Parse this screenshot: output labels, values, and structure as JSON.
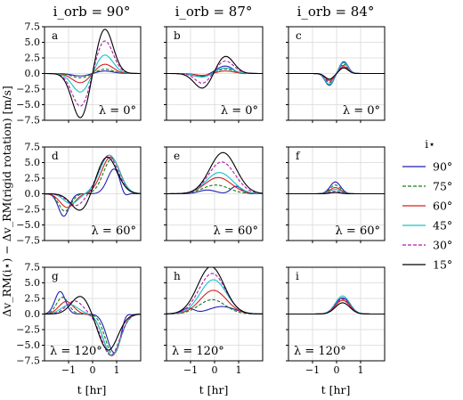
{
  "figure": {
    "column_titles": [
      "i_orb = 90°",
      "i_orb = 87°",
      "i_orb = 84°"
    ],
    "ylabel": "Δv_RM(i⋆) − Δv_RM(rigid rotation) [m/s]",
    "xlabel": "t [hr]"
  },
  "legend": {
    "title": "i⋆",
    "entries": [
      {
        "label": "90°",
        "color": "#1f1fb4",
        "dash": "solid"
      },
      {
        "label": "75°",
        "color": "#1a7a1a",
        "dash": "dashed"
      },
      {
        "label": "60°",
        "color": "#d62020",
        "dash": "solid"
      },
      {
        "label": "45°",
        "color": "#17c4c4",
        "dash": "solid"
      },
      {
        "label": "30°",
        "color": "#b01ab0",
        "dash": "dashed"
      },
      {
        "label": "15°",
        "color": "#000000",
        "dash": "solid"
      }
    ]
  },
  "chart_data": {
    "type": "line",
    "layout": "3x3 grid of panels",
    "xlim": [
      -2,
      2
    ],
    "ylim": [
      -7.5,
      7.5
    ],
    "xticks": [
      -1,
      0,
      1
    ],
    "yticks": [
      -7.5,
      -5.0,
      -2.5,
      0.0,
      2.5,
      5.0,
      7.5
    ],
    "grid": true,
    "legend_position": "right",
    "panels": [
      {
        "id": "a",
        "letter": "a",
        "lambda": "λ = 0°",
        "i_orb": "90°",
        "row": 0,
        "col": 0,
        "curves": [
          {
            "series": "90°",
            "lobes": [
              [
                -0.5,
                0.35,
                -0.4
              ],
              [
                0.5,
                0.35,
                0.4
              ]
            ]
          },
          {
            "series": "75°",
            "lobes": [
              [
                -0.5,
                0.35,
                -0.7
              ],
              [
                0.5,
                0.35,
                0.7
              ]
            ]
          },
          {
            "series": "60°",
            "lobes": [
              [
                -0.5,
                0.35,
                -1.5
              ],
              [
                0.5,
                0.35,
                1.5
              ]
            ]
          },
          {
            "series": "45°",
            "lobes": [
              [
                -0.5,
                0.35,
                -3.0
              ],
              [
                0.5,
                0.35,
                3.0
              ]
            ]
          },
          {
            "series": "30°",
            "lobes": [
              [
                -0.5,
                0.35,
                -5.3
              ],
              [
                0.5,
                0.35,
                5.3
              ]
            ]
          },
          {
            "series": "15°",
            "lobes": [
              [
                -0.5,
                0.35,
                -7.2
              ],
              [
                0.5,
                0.35,
                7.2
              ]
            ]
          }
        ]
      },
      {
        "id": "b",
        "letter": "b",
        "lambda": "λ = 0°",
        "i_orb": "87°",
        "row": 0,
        "col": 1,
        "curves": [
          {
            "series": "90°",
            "lobes": [
              [
                -0.6,
                0.3,
                -0.5
              ],
              [
                0.45,
                0.35,
                1.2
              ],
              [
                1.0,
                0.2,
                -0.2
              ]
            ]
          },
          {
            "series": "75°",
            "lobes": [
              [
                -0.55,
                0.3,
                -0.4
              ],
              [
                0.45,
                0.35,
                0.7
              ]
            ]
          },
          {
            "series": "60°",
            "lobes": [
              [
                -0.5,
                0.3,
                -0.3
              ],
              [
                0.45,
                0.35,
                0.4
              ]
            ]
          },
          {
            "series": "45°",
            "lobes": [
              [
                -0.5,
                0.3,
                -0.6
              ],
              [
                0.45,
                0.35,
                0.9
              ]
            ]
          },
          {
            "series": "30°",
            "lobes": [
              [
                -0.5,
                0.3,
                -1.6
              ],
              [
                0.45,
                0.35,
                2.0
              ]
            ]
          },
          {
            "series": "15°",
            "lobes": [
              [
                -0.5,
                0.35,
                -2.4
              ],
              [
                0.45,
                0.35,
                2.8
              ]
            ]
          }
        ]
      },
      {
        "id": "c",
        "letter": "c",
        "lambda": "λ = 0°",
        "i_orb": "84°",
        "row": 0,
        "col": 2,
        "curves": [
          {
            "series": "90°",
            "lobes": [
              [
                -0.3,
                0.18,
                -1.9
              ],
              [
                0.3,
                0.18,
                1.9
              ]
            ]
          },
          {
            "series": "75°",
            "lobes": [
              [
                -0.3,
                0.18,
                -1.5
              ],
              [
                0.3,
                0.18,
                1.5
              ]
            ]
          },
          {
            "series": "60°",
            "lobes": [
              [
                -0.3,
                0.18,
                -1.1
              ],
              [
                0.3,
                0.18,
                1.1
              ]
            ]
          },
          {
            "series": "45°",
            "lobes": [
              [
                -0.3,
                0.18,
                -1.75
              ],
              [
                0.3,
                0.18,
                1.75
              ]
            ]
          },
          {
            "series": "30°",
            "lobes": [
              [
                -0.3,
                0.18,
                -1.3
              ],
              [
                0.3,
                0.18,
                1.3
              ]
            ]
          },
          {
            "series": "15°",
            "lobes": [
              [
                -0.3,
                0.18,
                -0.9
              ],
              [
                0.3,
                0.18,
                0.9
              ]
            ]
          }
        ]
      },
      {
        "id": "d",
        "letter": "d",
        "lambda": "λ = 60°",
        "i_orb": "90°",
        "row": 1,
        "col": 0,
        "curves": [
          {
            "series": "90°",
            "lobes": [
              [
                -1.2,
                0.22,
                -3.6
              ],
              [
                0.9,
                0.28,
                4.0
              ],
              [
                1.3,
                0.15,
                -1.2
              ]
            ]
          },
          {
            "series": "75°",
            "lobes": [
              [
                -1.15,
                0.25,
                -2.8
              ],
              [
                0.8,
                0.35,
                5.6
              ]
            ]
          },
          {
            "series": "60°",
            "lobes": [
              [
                -1.05,
                0.3,
                -2.2
              ],
              [
                0.75,
                0.38,
                5.9
              ]
            ]
          },
          {
            "series": "45°",
            "lobes": [
              [
                -0.9,
                0.3,
                -1.6
              ],
              [
                0.7,
                0.4,
                6.2
              ]
            ]
          },
          {
            "series": "30°",
            "lobes": [
              [
                -0.7,
                0.35,
                -1.9
              ],
              [
                0.65,
                0.4,
                6.1
              ]
            ]
          },
          {
            "series": "15°",
            "lobes": [
              [
                -0.5,
                0.38,
                -2.8
              ],
              [
                0.6,
                0.42,
                5.9
              ]
            ]
          }
        ]
      },
      {
        "id": "e",
        "letter": "e",
        "lambda": "λ = 60°",
        "i_orb": "87°",
        "row": 1,
        "col": 1,
        "curves": [
          {
            "series": "90°",
            "lobes": [
              [
                -0.3,
                0.35,
                0.6
              ],
              [
                0.9,
                0.22,
                1.2
              ]
            ]
          },
          {
            "series": "75°",
            "lobes": [
              [
                0.05,
                0.55,
                1.4
              ]
            ]
          },
          {
            "series": "60°",
            "lobes": [
              [
                0.15,
                0.55,
                2.6
              ]
            ]
          },
          {
            "series": "45°",
            "lobes": [
              [
                0.2,
                0.55,
                3.4
              ]
            ]
          },
          {
            "series": "30°",
            "lobes": [
              [
                0.3,
                0.55,
                5.1
              ]
            ]
          },
          {
            "series": "15°",
            "lobes": [
              [
                0.35,
                0.55,
                6.6
              ]
            ]
          }
        ]
      },
      {
        "id": "f",
        "letter": "f",
        "lambda": "λ = 60°",
        "i_orb": "84°",
        "row": 1,
        "col": 2,
        "curves": [
          {
            "series": "90°",
            "lobes": [
              [
                -0.05,
                0.22,
                1.9
              ]
            ]
          },
          {
            "series": "75°",
            "lobes": [
              [
                -0.05,
                0.22,
                1.4
              ]
            ]
          },
          {
            "series": "60°",
            "lobes": [
              [
                -0.05,
                0.22,
                1.0
              ]
            ]
          },
          {
            "series": "45°",
            "lobes": [
              [
                -0.05,
                0.22,
                0.7
              ]
            ]
          },
          {
            "series": "30°",
            "lobes": [
              [
                -0.05,
                0.22,
                0.4
              ]
            ]
          },
          {
            "series": "15°",
            "lobes": [
              [
                -0.05,
                0.22,
                0.2
              ]
            ]
          }
        ]
      },
      {
        "id": "g",
        "letter": "g",
        "lambda": "λ = 120°",
        "i_orb": "90°",
        "row": 2,
        "col": 0,
        "curves": [
          {
            "series": "90°",
            "lobes": [
              [
                -1.35,
                0.22,
                3.6
              ],
              [
                0.9,
                0.3,
                -6.2
              ],
              [
                1.35,
                0.15,
                1.2
              ]
            ]
          },
          {
            "series": "75°",
            "lobes": [
              [
                -1.25,
                0.25,
                2.7
              ],
              [
                0.85,
                0.32,
                -6.5
              ]
            ]
          },
          {
            "series": "60°",
            "lobes": [
              [
                -1.1,
                0.3,
                2.0
              ],
              [
                0.8,
                0.35,
                -6.7
              ]
            ]
          },
          {
            "series": "45°",
            "lobes": [
              [
                -0.95,
                0.35,
                1.5
              ],
              [
                0.8,
                0.35,
                -6.6
              ]
            ]
          },
          {
            "series": "30°",
            "lobes": [
              [
                -0.75,
                0.35,
                2.1
              ],
              [
                0.75,
                0.38,
                -6.6
              ]
            ]
          },
          {
            "series": "15°",
            "lobes": [
              [
                -0.5,
                0.38,
                2.9
              ],
              [
                0.65,
                0.4,
                -5.8
              ]
            ]
          }
        ]
      },
      {
        "id": "h",
        "letter": "h",
        "lambda": "λ = 120°",
        "i_orb": "87°",
        "row": 2,
        "col": 1,
        "curves": [
          {
            "series": "90°",
            "lobes": [
              [
                -1.1,
                0.25,
                0.9
              ],
              [
                0.3,
                0.55,
                1.2
              ]
            ]
          },
          {
            "series": "75°",
            "lobes": [
              [
                -0.1,
                0.55,
                2.3
              ]
            ]
          },
          {
            "series": "60°",
            "lobes": [
              [
                -0.05,
                0.55,
                3.8
              ]
            ]
          },
          {
            "series": "45°",
            "lobes": [
              [
                -0.05,
                0.55,
                5.5
              ]
            ]
          },
          {
            "series": "30°",
            "lobes": [
              [
                -0.1,
                0.55,
                6.5
              ]
            ]
          },
          {
            "series": "15°",
            "lobes": [
              [
                -0.15,
                0.55,
                7.6
              ]
            ]
          }
        ]
      },
      {
        "id": "i",
        "letter": "i",
        "lambda": "λ = 120°",
        "i_orb": "84°",
        "row": 2,
        "col": 2,
        "curves": [
          {
            "series": "90°",
            "lobes": [
              [
                0.25,
                0.3,
                2.6
              ]
            ]
          },
          {
            "series": "75°",
            "lobes": [
              [
                0.25,
                0.3,
                2.4
              ]
            ]
          },
          {
            "series": "60°",
            "lobes": [
              [
                0.25,
                0.3,
                2.2
              ]
            ]
          },
          {
            "series": "45°",
            "lobes": [
              [
                0.25,
                0.3,
                2.9
              ]
            ]
          },
          {
            "series": "30°",
            "lobes": [
              [
                0.25,
                0.3,
                2.5
              ]
            ]
          },
          {
            "series": "15°",
            "lobes": [
              [
                0.25,
                0.3,
                1.8
              ]
            ]
          }
        ]
      }
    ]
  }
}
